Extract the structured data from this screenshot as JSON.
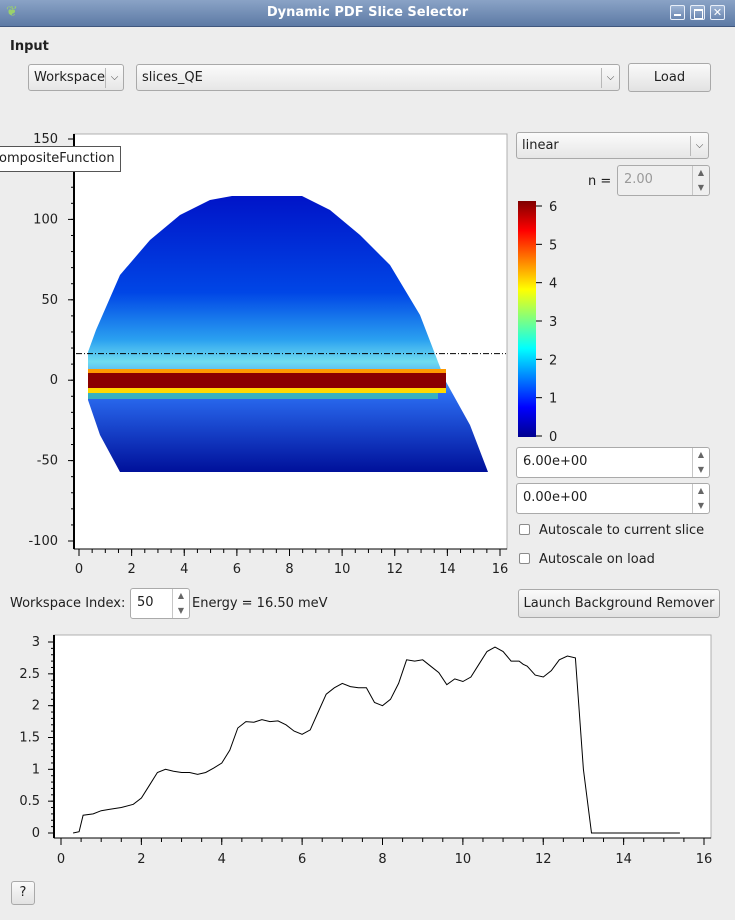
{
  "window": {
    "title": "Dynamic PDF Slice Selector",
    "icon": "leaf-icon"
  },
  "input": {
    "section_label": "Input",
    "source_combo": "Workspace",
    "workspace_combo": "slices_QE",
    "load_button": "Load"
  },
  "tooltip": "ompositeFunction",
  "slice_plot": {
    "y_ticks": [
      "150",
      "100",
      "50",
      "0",
      "-50",
      "-100"
    ],
    "x_ticks": [
      "0",
      "2",
      "4",
      "6",
      "8",
      "10",
      "12",
      "14",
      "16"
    ],
    "energy_line_y": 16.5
  },
  "colorbar": {
    "scale_combo": "linear",
    "n_label": "n =",
    "n_value": "2.00",
    "ticks": [
      "6",
      "5",
      "4",
      "3",
      "2",
      "1",
      "0"
    ],
    "max_value": "6.00e+00",
    "min_value": "0.00e+00",
    "autoscale_slice": "Autoscale to current slice",
    "autoscale_load": "Autoscale on load"
  },
  "workspace_index": {
    "label": "Workspace Index:",
    "value": "50",
    "energy": "Energy = 16.50 meV",
    "launch_button": "Launch Background Remover"
  },
  "help_button": "?",
  "chart_data": {
    "type": "line",
    "title": "",
    "xlabel": "",
    "ylabel": "",
    "xlim": [
      0,
      16
    ],
    "ylim": [
      0,
      3
    ],
    "x_ticks": [
      "0",
      "2",
      "4",
      "6",
      "8",
      "10",
      "12",
      "14",
      "16"
    ],
    "y_ticks": [
      "0",
      "0.5",
      "1",
      "1.5",
      "2",
      "2.5",
      "3"
    ],
    "series": [
      {
        "x": [
          0.3,
          0.45,
          0.55,
          0.8,
          1.0,
          1.2,
          1.5,
          1.8,
          2.0,
          2.2,
          2.4,
          2.6,
          2.8,
          3.0,
          3.2,
          3.4,
          3.6,
          3.8,
          4.0,
          4.2,
          4.4,
          4.6,
          4.8,
          5.0,
          5.2,
          5.4,
          5.6,
          5.8,
          6.0,
          6.2,
          6.4,
          6.6,
          6.8,
          7.0,
          7.2,
          7.4,
          7.6,
          7.8,
          8.0,
          8.2,
          8.4,
          8.6,
          8.8,
          9.0,
          9.2,
          9.4,
          9.6,
          9.8,
          10.0,
          10.2,
          10.4,
          10.6,
          10.8,
          11.0,
          11.2,
          11.4,
          11.5,
          11.6,
          11.8,
          12.0,
          12.2,
          12.4,
          12.6,
          12.8,
          13.0,
          13.2,
          13.35,
          13.4,
          13.45,
          13.5,
          13.7,
          14.0,
          14.5,
          15.0,
          15.4
        ],
        "values": [
          0.0,
          0.02,
          0.28,
          0.3,
          0.35,
          0.37,
          0.4,
          0.45,
          0.55,
          0.75,
          0.95,
          1.0,
          0.97,
          0.95,
          0.95,
          0.92,
          0.95,
          1.02,
          1.1,
          1.3,
          1.65,
          1.75,
          1.74,
          1.78,
          1.75,
          1.76,
          1.7,
          1.6,
          1.55,
          1.62,
          1.9,
          2.18,
          2.28,
          2.35,
          2.3,
          2.28,
          2.28,
          2.05,
          2.0,
          2.1,
          2.35,
          2.72,
          2.7,
          2.72,
          2.62,
          2.52,
          2.33,
          2.42,
          2.38,
          2.45,
          2.65,
          2.85,
          2.92,
          2.85,
          2.7,
          2.7,
          2.65,
          2.62,
          2.48,
          2.45,
          2.55,
          2.72,
          2.78,
          2.75,
          1.0,
          0.0,
          0.0,
          0.0,
          0.0,
          0.0,
          0.0,
          0.0,
          0.0,
          0.0,
          0.0
        ]
      }
    ]
  }
}
